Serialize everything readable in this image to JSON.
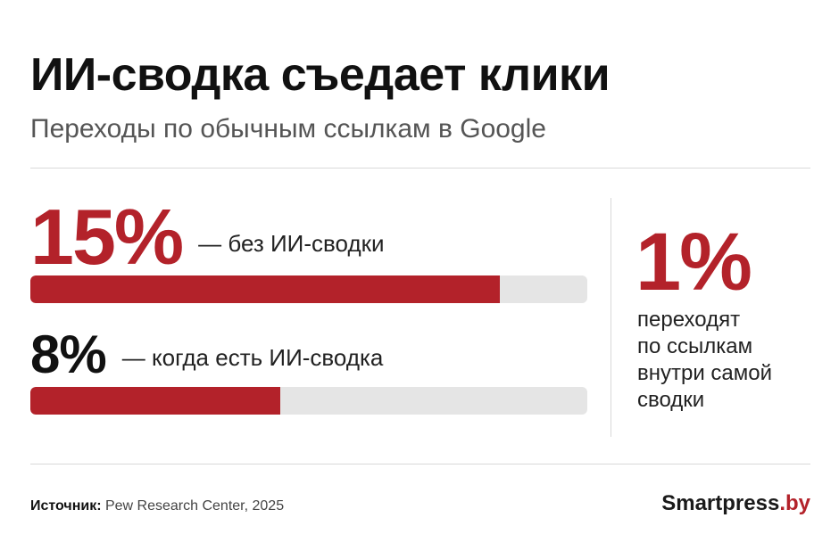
{
  "header": {
    "title": "ИИ-сводка съедает клики",
    "subtitle": "Переходы по обычным ссылкам в Google"
  },
  "stats": [
    {
      "value_text": "15%",
      "label": "— без ИИ-сводки"
    },
    {
      "value_text": "8%",
      "label": "— когда есть ИИ-сводка"
    }
  ],
  "side_stat": {
    "value_text": "1%",
    "lines": [
      "переходят",
      "по ссылкам",
      "внутри самой",
      "сводки"
    ]
  },
  "footer": {
    "source_label": "Источник:",
    "source_text": " Pew Research Center, 2025",
    "brand_main": "Smartpress",
    "brand_tld": ".by"
  },
  "colors": {
    "accent": "#b3222a",
    "track": "#e5e5e5",
    "text": "#111111",
    "muted": "#555555"
  },
  "chart_data": {
    "type": "bar",
    "title": "ИИ-сводка съедает клики",
    "subtitle": "Переходы по обычным ссылкам в Google",
    "categories": [
      "— без ИИ-сводки",
      "— когда есть ИИ-сводка"
    ],
    "values": [
      15,
      8
    ],
    "unit": "%",
    "orientation": "horizontal",
    "xlim": [
      0,
      17.8
    ],
    "grid": false,
    "annotations": [
      "1%",
      "переходят по ссылкам внутри самой сводки"
    ]
  }
}
